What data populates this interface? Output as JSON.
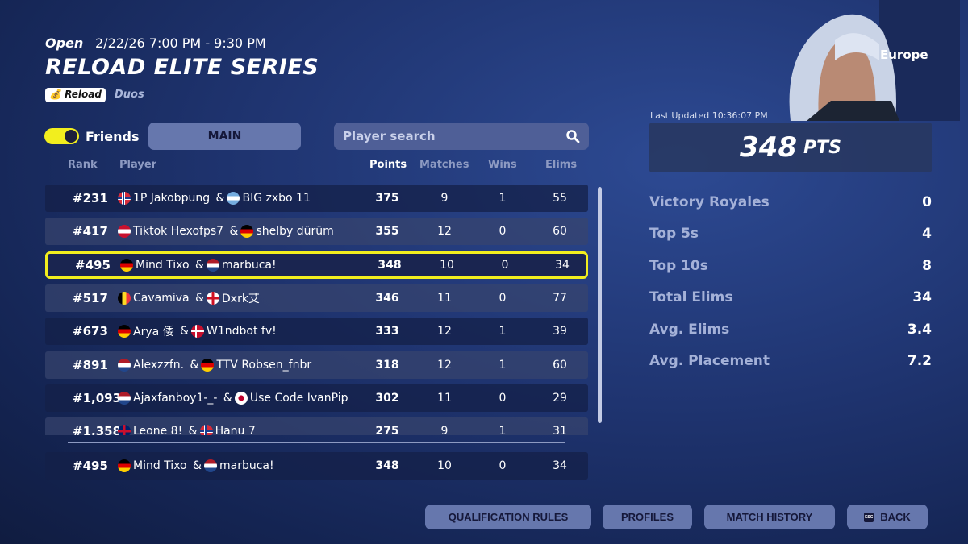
{
  "header": {
    "status": "Open",
    "datetime": "2/22/26 7:00 PM - 9:30 PM",
    "title": "RELOAD ELITE SERIES",
    "mode_badge": "Reload",
    "mode_badge_icon": "money-bag-icon",
    "team_type": "Duos"
  },
  "controls": {
    "friends_label": "Friends",
    "friends_toggle_on": true,
    "main_tab": "MAIN",
    "search_placeholder": "Player search",
    "search_value": ""
  },
  "columns": {
    "rank": "Rank",
    "player": "Player",
    "points": "Points",
    "matches": "Matches",
    "wins": "Wins",
    "elims": "Elims"
  },
  "rows": [
    {
      "rank": "#231",
      "p1": "1P Jakobpung",
      "f1": "no",
      "p2": "BIG zxbo 11",
      "f2": "ar",
      "points": "375",
      "matches": "9",
      "wins": "1",
      "elims": "55"
    },
    {
      "rank": "#417",
      "p1": "Tiktok Hexofps7",
      "f1": "at",
      "p2": "shelby dürüm",
      "f2": "de",
      "points": "355",
      "matches": "12",
      "wins": "0",
      "elims": "60"
    },
    {
      "rank": "#495",
      "p1": "Mind Tixo",
      "f1": "de",
      "p2": "marbuca!",
      "f2": "nl",
      "points": "348",
      "matches": "10",
      "wins": "0",
      "elims": "34",
      "highlight": true
    },
    {
      "rank": "#517",
      "p1": "Cavamiva",
      "f1": "be",
      "p2": "Dxrk艾",
      "f2": "en",
      "points": "346",
      "matches": "11",
      "wins": "0",
      "elims": "77"
    },
    {
      "rank": "#673",
      "p1": "Arya 倭",
      "f1": "de",
      "p2": "W1ndbot fv!",
      "f2": "dk",
      "points": "333",
      "matches": "12",
      "wins": "1",
      "elims": "39"
    },
    {
      "rank": "#891",
      "p1": "Alexzzfn.",
      "f1": "nl",
      "p2": "TTV Robsen_fnbr",
      "f2": "de",
      "points": "318",
      "matches": "12",
      "wins": "1",
      "elims": "60"
    },
    {
      "rank": "#1,093",
      "p1": "Ajaxfanboy1-_-",
      "f1": "nl",
      "p2": "Use Code IvanPip",
      "f2": "jp",
      "points": "302",
      "matches": "11",
      "wins": "0",
      "elims": "29"
    },
    {
      "rank": "#1,358",
      "p1": "Leone 8!",
      "f1": "gb",
      "p2": "Hanu 7",
      "f2": "no",
      "points": "275",
      "matches": "9",
      "wins": "1",
      "elims": "31"
    }
  ],
  "pinned": {
    "rank": "#495",
    "p1": "Mind Tixo",
    "f1": "de",
    "p2": "marbuca!",
    "f2": "nl",
    "points": "348",
    "matches": "10",
    "wins": "0",
    "elims": "34"
  },
  "side": {
    "region": "Europe",
    "last_updated": "Last Updated 10:36:07 PM",
    "points": "348",
    "points_unit": "PTS",
    "stats": [
      {
        "label": "Victory Royales",
        "value": "0"
      },
      {
        "label": "Top 5s",
        "value": "4"
      },
      {
        "label": "Top 10s",
        "value": "8"
      },
      {
        "label": "Total Elims",
        "value": "34"
      },
      {
        "label": "Avg. Elims",
        "value": "3.4"
      },
      {
        "label": "Avg. Placement",
        "value": "7.2"
      }
    ]
  },
  "footer": {
    "qualification": "QUALIFICATION RULES",
    "profiles": "PROFILES",
    "history": "MATCH HISTORY",
    "back": "BACK",
    "esc": "ESC"
  },
  "colors": {
    "accent": "#f2ee1e",
    "button": "#6677ad"
  }
}
